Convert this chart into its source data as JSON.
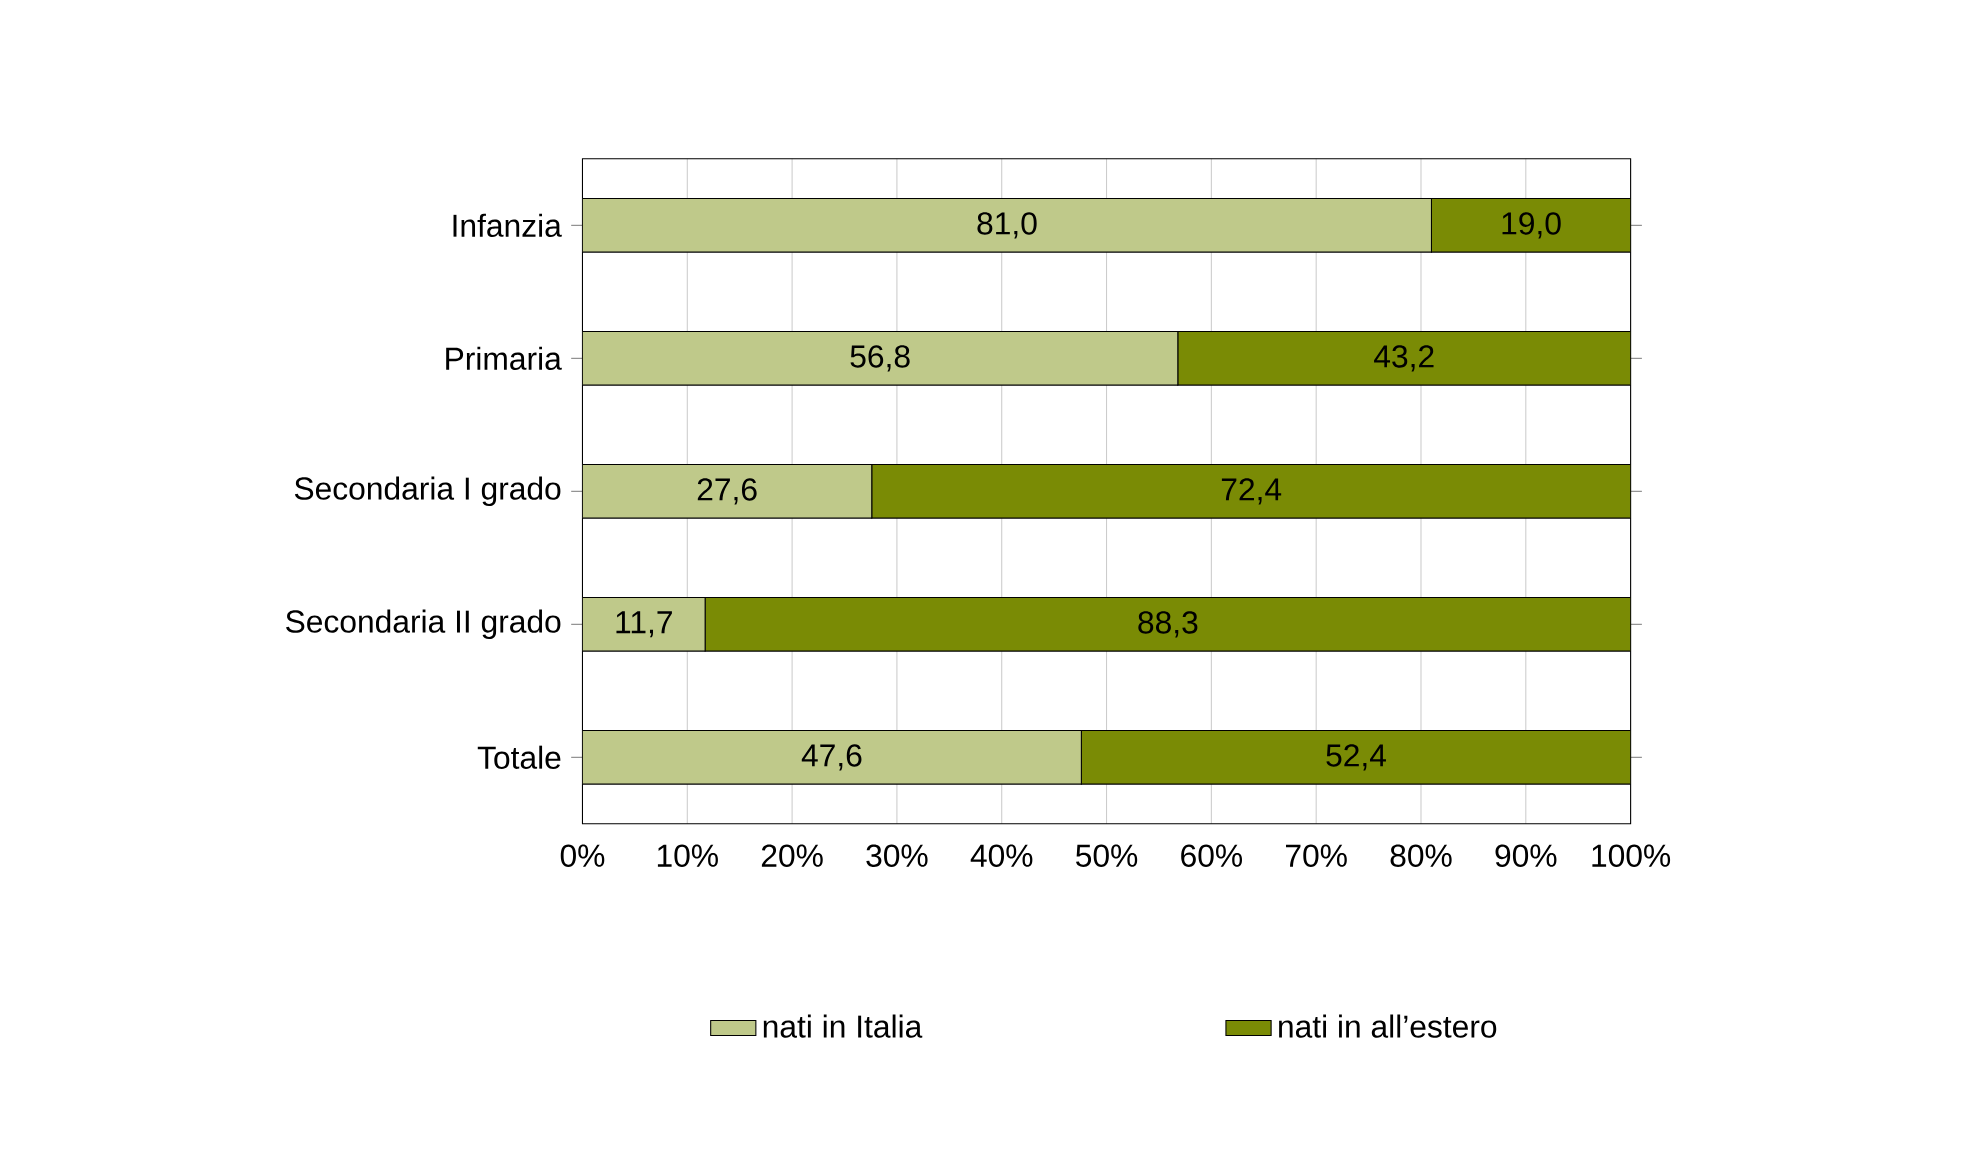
{
  "chart_data": {
    "type": "bar",
    "orientation": "horizontal",
    "stacked": true,
    "categories": [
      "Infanzia",
      "Primaria",
      "Secondaria I grado",
      "Secondaria II grado",
      "Totale"
    ],
    "series": [
      {
        "name": "nati in Italia",
        "color": "#bfc98a",
        "values": [
          81.0,
          56.8,
          27.6,
          11.7,
          47.6
        ],
        "value_labels": [
          "81,0",
          "56,8",
          "27,6",
          "11,7",
          "47,6"
        ]
      },
      {
        "name": "nati in all’estero",
        "color": "#7a8b05",
        "values": [
          19.0,
          43.2,
          72.4,
          88.3,
          52.4
        ],
        "value_labels": [
          "19,0",
          "43,2",
          "72,4",
          "88,3",
          "52,4"
        ]
      }
    ],
    "xlim": [
      0,
      100
    ],
    "xticks": [
      {
        "value": 0,
        "label": "0%"
      },
      {
        "value": 10,
        "label": "10%"
      },
      {
        "value": 20,
        "label": "20%"
      },
      {
        "value": 30,
        "label": "30%"
      },
      {
        "value": 40,
        "label": "40%"
      },
      {
        "value": 50,
        "label": "50%"
      },
      {
        "value": 60,
        "label": "60%"
      },
      {
        "value": 70,
        "label": "70%"
      },
      {
        "value": 80,
        "label": "80%"
      },
      {
        "value": 90,
        "label": "90%"
      },
      {
        "value": 100,
        "label": "100%"
      }
    ],
    "grid": "x",
    "legend": "bottom"
  }
}
